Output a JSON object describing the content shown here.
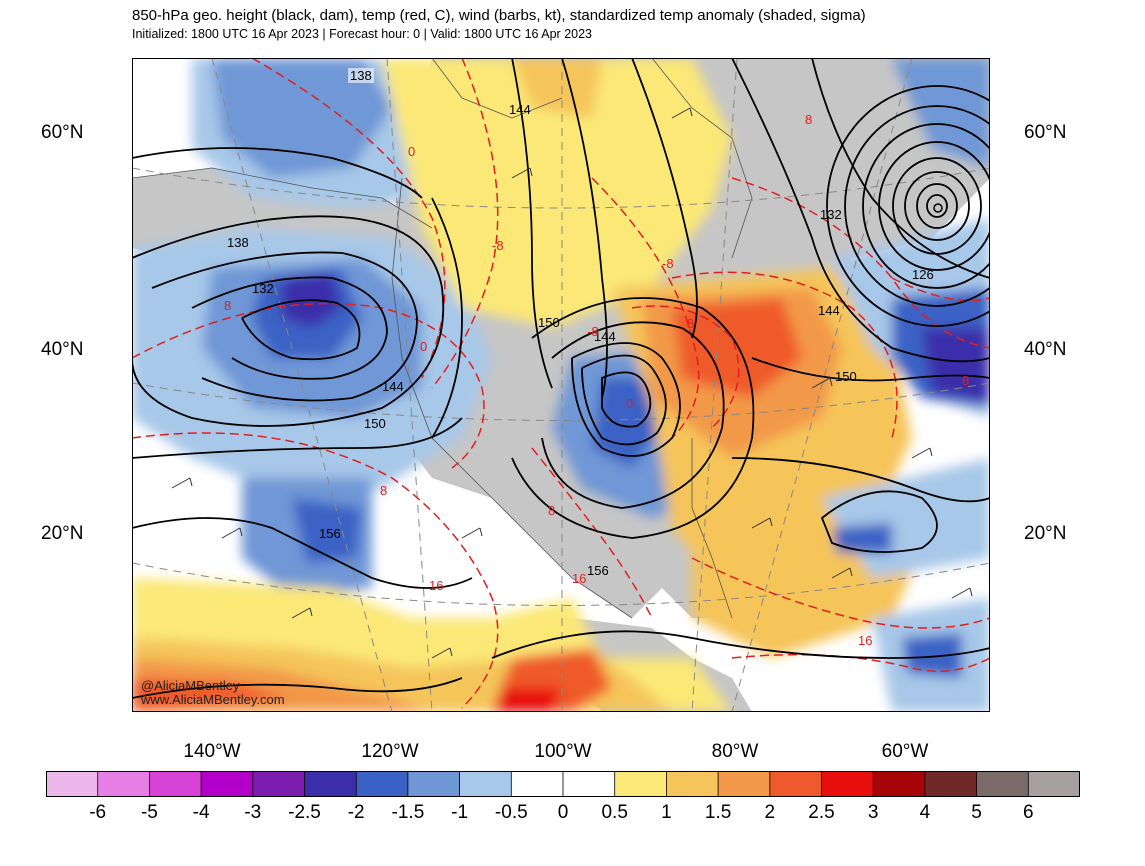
{
  "header": {
    "title": "850-hPa geo. height (black, dam), temp (red, C), wind (barbs, kt), standardized temp anomaly (shaded, sigma)",
    "subtitle": "Initialized: 1800 UTC 16 Apr 2023 | Forecast hour: 0 | Valid: 1800 UTC 16 Apr 2023"
  },
  "map": {
    "lat_labels": [
      "60°N",
      "40°N",
      "20°N"
    ],
    "lon_labels": [
      "140°W",
      "120°W",
      "100°W",
      "80°W",
      "60°W"
    ],
    "height_labels": [
      "138",
      "144",
      "138",
      "132",
      "144",
      "150",
      "150",
      "144",
      "156",
      "156",
      "132",
      "126",
      "144",
      "150"
    ],
    "temp_labels": [
      "8",
      "0",
      "-8",
      "8",
      "-8",
      "0",
      "8",
      "0",
      "-8",
      "8",
      "8",
      "16",
      "16",
      "8",
      "16"
    ],
    "credit_line1": "@AliciaMBentley",
    "credit_line2": "www.AliciaMBentley.com"
  },
  "colorbar": {
    "labels": [
      "-6",
      "-5",
      "-4",
      "-3",
      "-2.5",
      "-2",
      "-1.5",
      "-1",
      "-0.5",
      "0",
      "0.5",
      "1",
      "1.5",
      "2",
      "2.5",
      "3",
      "4",
      "5",
      "6"
    ],
    "colors": [
      "#ecb8ec",
      "#e57ee5",
      "#d743d7",
      "#b200c8",
      "#7c1ead",
      "#3b2eaa",
      "#3a62c4",
      "#6f97d6",
      "#a7c8e8",
      "#ffffff",
      "#ffffff",
      "#fbe877",
      "#f5c55a",
      "#f2994a",
      "#ef5a2c",
      "#e80f0f",
      "#a60606",
      "#6f2a28",
      "#7a6a6a",
      "#a8a0a0"
    ]
  },
  "palette": {
    "height": "#000000",
    "temp": "#e41e1e",
    "land": "#c6c6c6"
  }
}
